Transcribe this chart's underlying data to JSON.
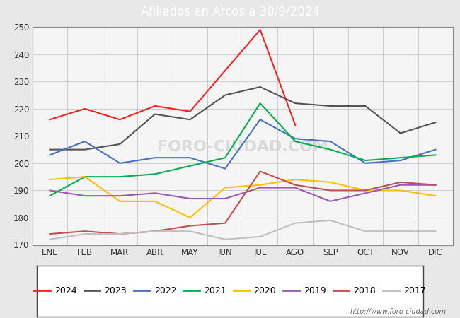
{
  "title": "Afiliados en Arcos a 30/9/2024",
  "title_color": "#ffffff",
  "title_bg_color": "#4f7dc9",
  "months": [
    "ENE",
    "FEB",
    "MAR",
    "ABR",
    "MAY",
    "JUN",
    "JUL",
    "AGO",
    "SEP",
    "OCT",
    "NOV",
    "DIC"
  ],
  "ylim": [
    170,
    250
  ],
  "yticks": [
    170,
    180,
    190,
    200,
    210,
    220,
    230,
    240,
    250
  ],
  "series": {
    "2024": {
      "color": "#ff2020",
      "values": [
        216,
        220,
        216,
        221,
        219,
        234,
        249,
        214,
        null,
        null,
        null,
        null
      ]
    },
    "2023": {
      "color": "#555555",
      "values": [
        205,
        205,
        207,
        218,
        216,
        225,
        228,
        222,
        221,
        221,
        211,
        215
      ]
    },
    "2022": {
      "color": "#4472c4",
      "values": [
        203,
        208,
        200,
        202,
        202,
        198,
        216,
        209,
        208,
        200,
        201,
        205
      ]
    },
    "2021": {
      "color": "#00b050",
      "values": [
        188,
        195,
        195,
        196,
        199,
        202,
        222,
        208,
        205,
        201,
        202,
        203
      ]
    },
    "2020": {
      "color": "#ffc000",
      "values": [
        194,
        195,
        186,
        186,
        180,
        191,
        192,
        194,
        193,
        190,
        190,
        188
      ]
    },
    "2019": {
      "color": "#9b59b6",
      "values": [
        190,
        188,
        188,
        189,
        187,
        187,
        191,
        191,
        186,
        189,
        192,
        192
      ]
    },
    "2018": {
      "color": "#c0504d",
      "values": [
        174,
        175,
        174,
        175,
        177,
        178,
        197,
        192,
        190,
        190,
        193,
        192
      ]
    },
    "2017": {
      "color": "#c0c0c0",
      "values": [
        172,
        174,
        174,
        175,
        175,
        172,
        173,
        178,
        179,
        175,
        175,
        175
      ]
    }
  },
  "watermark": "FORO-CIUDAD.COM",
  "footer_url": "http://www.foro-ciudad.com",
  "bg_color": "#e8e8e8",
  "plot_bg_color": "#e8e8e8",
  "grid_color": "#cccccc",
  "legend_order": [
    "2024",
    "2023",
    "2022",
    "2021",
    "2020",
    "2019",
    "2018",
    "2017"
  ]
}
